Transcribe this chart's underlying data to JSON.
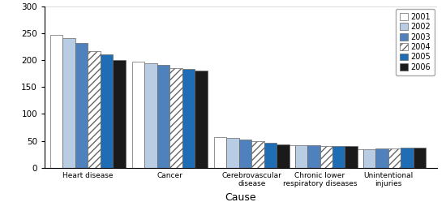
{
  "categories": [
    "Heart disease",
    "Cancer",
    "Cerebrovascular\ndisease",
    "Chronic lower\nrespiratory diseases",
    "Unintentional\ninjuries"
  ],
  "years": [
    "2001",
    "2002",
    "2003",
    "2004",
    "2005",
    "2006"
  ],
  "values": {
    "2001": [
      247,
      197,
      57,
      42,
      35
    ],
    "2002": [
      241,
      194,
      55,
      42,
      35
    ],
    "2003": [
      232,
      191,
      53,
      42,
      36
    ],
    "2004": [
      217,
      185,
      50,
      41,
      36
    ],
    "2005": [
      211,
      184,
      46,
      41,
      38
    ],
    "2006": [
      200,
      181,
      43,
      41,
      38
    ]
  },
  "colors": {
    "2001": "#ffffff",
    "2002": "#b8cce4",
    "2003": "#4f81bd",
    "2004": "#ffffff",
    "2005": "#1f6db5",
    "2006": "#1a1a1a"
  },
  "hatch": {
    "2001": "",
    "2002": "",
    "2003": "",
    "2004": "////",
    "2005": "",
    "2006": ""
  },
  "edgecolor": "#666666",
  "ylim": [
    0,
    300
  ],
  "yticks": [
    0,
    50,
    100,
    150,
    200,
    250,
    300
  ],
  "xlabel": "Cause",
  "bar_width": 0.11
}
